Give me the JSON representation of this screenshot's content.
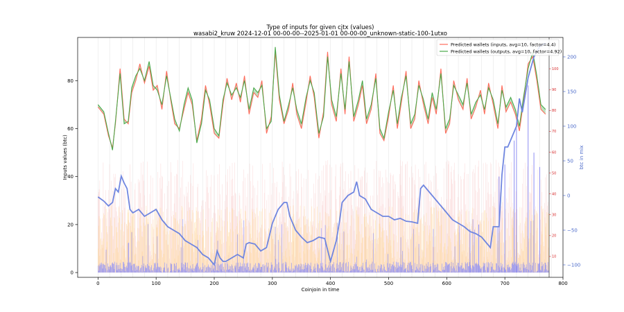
{
  "chart_data": {
    "type": "line",
    "title": "Type of inputs for given cjtx (values)",
    "subtitle": "wasabi2_kruw 2024-12-01 00-00-00--2025-01-01 00-00-00_unknown-static-100-1utxo",
    "xlabel": "Coinjoin in time",
    "ylabel": "Inputs values (btc)",
    "y2label": "btc in mix",
    "xlim": [
      -35,
      800
    ],
    "ylim": [
      -2,
      98
    ],
    "y2lim": [
      -118,
      228
    ],
    "y3lim": [
      0,
      115
    ],
    "xticks": [
      "0",
      "100",
      "200",
      "300",
      "400",
      "500",
      "600",
      "700",
      "800"
    ],
    "yticks": [
      "0",
      "20",
      "40",
      "60",
      "80"
    ],
    "y2ticks": [
      "−100",
      "−50",
      "0",
      "50",
      "100",
      "150",
      "200"
    ],
    "y3ticks": [
      "10",
      "20",
      "30",
      "40",
      "50",
      "60",
      "70",
      "80",
      "90",
      "100"
    ],
    "legend": {
      "placement": "top-right",
      "entries": [
        "Predicted wallets (inputs, avg=10, factor=4.4)",
        "Predicted wallets (outputs, avg=10, factor=4.92)"
      ]
    },
    "grid": "vertical",
    "colors": {
      "inputs": "#ff6b5b",
      "outputs": "#4aa84a",
      "mix": "#6f86e0",
      "bars_low": "#8e8ef2",
      "bars_mid": "#ffd27f",
      "bars_high": "#f6b6b6"
    },
    "series": [
      {
        "name": "Predicted wallets (inputs, avg=10, factor=4.4)",
        "x": [
          0,
          10,
          18,
          25,
          30,
          38,
          45,
          52,
          58,
          65,
          72,
          80,
          88,
          95,
          102,
          110,
          118,
          125,
          132,
          140,
          148,
          155,
          162,
          170,
          178,
          185,
          192,
          200,
          208,
          215,
          222,
          230,
          238,
          245,
          252,
          260,
          268,
          275,
          282,
          290,
          298,
          305,
          312,
          320,
          328,
          335,
          342,
          350,
          358,
          365,
          372,
          380,
          388,
          395,
          402,
          410,
          418,
          425,
          432,
          440,
          448,
          455,
          462,
          470,
          478,
          485,
          492,
          500,
          508,
          515,
          522,
          530,
          538,
          545,
          552,
          560,
          568,
          575,
          582,
          590,
          598,
          605,
          612,
          620,
          628,
          635,
          642,
          650,
          658,
          665,
          672,
          680,
          688,
          695,
          702,
          710,
          718,
          725,
          732,
          740,
          748,
          755,
          762,
          770
        ],
        "values": [
          69,
          66,
          57,
          52,
          62,
          85,
          64,
          62,
          75,
          80,
          87,
          79,
          86,
          76,
          78,
          68,
          84,
          72,
          62,
          60,
          68,
          75,
          70,
          55,
          64,
          78,
          70,
          58,
          56,
          70,
          81,
          72,
          79,
          71,
          82,
          66,
          75,
          73,
          80,
          58,
          65,
          92,
          72,
          62,
          68,
          79,
          66,
          60,
          71,
          82,
          73,
          56,
          67,
          92,
          70,
          63,
          85,
          66,
          90,
          63,
          70,
          78,
          62,
          68,
          83,
          58,
          55,
          65,
          78,
          60,
          71,
          84,
          60,
          64,
          80,
          70,
          62,
          73,
          66,
          85,
          58,
          62,
          80,
          72,
          68,
          81,
          64,
          69,
          76,
          66,
          79,
          70,
          60,
          78,
          67,
          71,
          66,
          59,
          71,
          87,
          90,
          80,
          68,
          66
        ]
      },
      {
        "name": "Predicted wallets (outputs, avg=10, factor=4.92)",
        "x": [
          0,
          10,
          18,
          25,
          30,
          38,
          45,
          52,
          58,
          65,
          72,
          80,
          88,
          95,
          102,
          110,
          118,
          125,
          132,
          140,
          148,
          155,
          162,
          170,
          178,
          185,
          192,
          200,
          208,
          215,
          222,
          230,
          238,
          245,
          252,
          260,
          268,
          275,
          282,
          290,
          298,
          305,
          312,
          320,
          328,
          335,
          342,
          350,
          358,
          365,
          372,
          380,
          388,
          395,
          402,
          410,
          418,
          425,
          432,
          440,
          448,
          455,
          462,
          470,
          478,
          485,
          492,
          500,
          508,
          515,
          522,
          530,
          538,
          545,
          552,
          560,
          568,
          575,
          582,
          590,
          598,
          605,
          612,
          620,
          628,
          635,
          642,
          650,
          658,
          665,
          672,
          680,
          688,
          695,
          702,
          710,
          718,
          725,
          732,
          740,
          748,
          755,
          762,
          770
        ],
        "values": [
          70,
          67,
          58,
          51,
          63,
          83,
          62,
          63,
          77,
          82,
          85,
          80,
          88,
          78,
          76,
          70,
          82,
          73,
          64,
          59,
          70,
          77,
          72,
          54,
          62,
          76,
          72,
          60,
          57,
          72,
          79,
          74,
          77,
          73,
          80,
          68,
          77,
          75,
          78,
          60,
          63,
          94,
          74,
          63,
          70,
          77,
          68,
          62,
          73,
          80,
          75,
          58,
          65,
          90,
          72,
          65,
          83,
          68,
          88,
          65,
          72,
          80,
          64,
          70,
          81,
          60,
          56,
          67,
          76,
          62,
          73,
          82,
          62,
          66,
          78,
          72,
          64,
          75,
          68,
          83,
          60,
          64,
          78,
          74,
          70,
          79,
          66,
          71,
          74,
          68,
          77,
          72,
          62,
          76,
          69,
          73,
          68,
          61,
          73,
          85,
          92,
          82,
          70,
          68
        ]
      },
      {
        "name": "btc in mix",
        "x": [
          0,
          10,
          18,
          25,
          30,
          35,
          40,
          45,
          50,
          55,
          60,
          70,
          80,
          90,
          100,
          110,
          120,
          130,
          140,
          150,
          160,
          170,
          180,
          190,
          200,
          205,
          210,
          215,
          220,
          230,
          240,
          250,
          255,
          260,
          270,
          280,
          290,
          300,
          310,
          320,
          325,
          330,
          340,
          350,
          360,
          370,
          380,
          390,
          400,
          405,
          410,
          415,
          420,
          430,
          440,
          445,
          450,
          460,
          470,
          480,
          490,
          500,
          510,
          520,
          530,
          540,
          550,
          555,
          560,
          570,
          580,
          590,
          600,
          610,
          620,
          630,
          640,
          650,
          660,
          670,
          675,
          680,
          690,
          695,
          700,
          705,
          710,
          720,
          725,
          730,
          740,
          750,
          760,
          770
        ],
        "values": [
          -2,
          -8,
          -15,
          -10,
          10,
          5,
          28,
          18,
          10,
          -20,
          -25,
          -20,
          -30,
          -25,
          -20,
          -35,
          -45,
          -50,
          -55,
          -65,
          -70,
          -75,
          -85,
          -90,
          -100,
          -80,
          -90,
          -95,
          -95,
          -90,
          -85,
          -90,
          -70,
          -68,
          -70,
          -80,
          -75,
          -40,
          -20,
          -10,
          -10,
          -30,
          -50,
          -60,
          -68,
          -65,
          -60,
          -62,
          -95,
          -80,
          -65,
          -40,
          -10,
          0,
          5,
          20,
          0,
          -5,
          -20,
          -25,
          -30,
          -30,
          -35,
          -33,
          -37,
          -38,
          -40,
          10,
          15,
          5,
          -5,
          -15,
          -25,
          -35,
          -40,
          -45,
          -52,
          -55,
          -60,
          -70,
          -75,
          -45,
          -45,
          30,
          70,
          70,
          80,
          100,
          140,
          120,
          170,
          200,
          215,
          220
        ]
      }
    ]
  }
}
